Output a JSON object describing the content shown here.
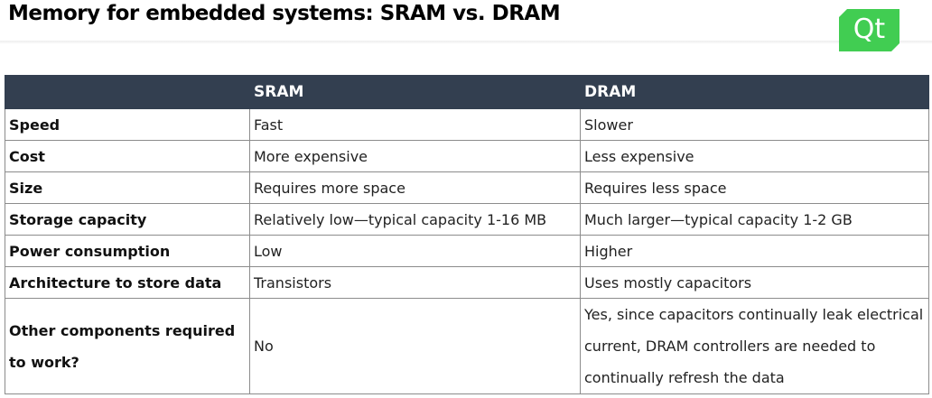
{
  "title": "Memory for embedded systems: SRAM vs. DRAM",
  "logo": {
    "text": "Qt",
    "color": "#41cd52"
  },
  "table": {
    "header_color": "#333f50",
    "columns": [
      "",
      "SRAM",
      "DRAM"
    ],
    "rows": [
      {
        "label": "Speed",
        "sram": "Fast",
        "dram": "Slower"
      },
      {
        "label": "Cost",
        "sram": "More expensive",
        "dram": "Less expensive"
      },
      {
        "label": "Size",
        "sram": "Requires more space",
        "dram": "Requires less space"
      },
      {
        "label": "Storage capacity",
        "sram": "Relatively low—typical capacity 1-16 MB",
        "dram": "Much larger—typical capacity 1-2 GB"
      },
      {
        "label": "Power consumption",
        "sram": "Low",
        "dram": "Higher"
      },
      {
        "label": "Architecture to store data",
        "sram": "Transistors",
        "dram": "Uses mostly capacitors"
      },
      {
        "label": "Other components required to work?",
        "sram": "No",
        "dram": "Yes, since capacitors continually leak electrical current, DRAM controllers are needed to continually refresh the data"
      }
    ]
  }
}
